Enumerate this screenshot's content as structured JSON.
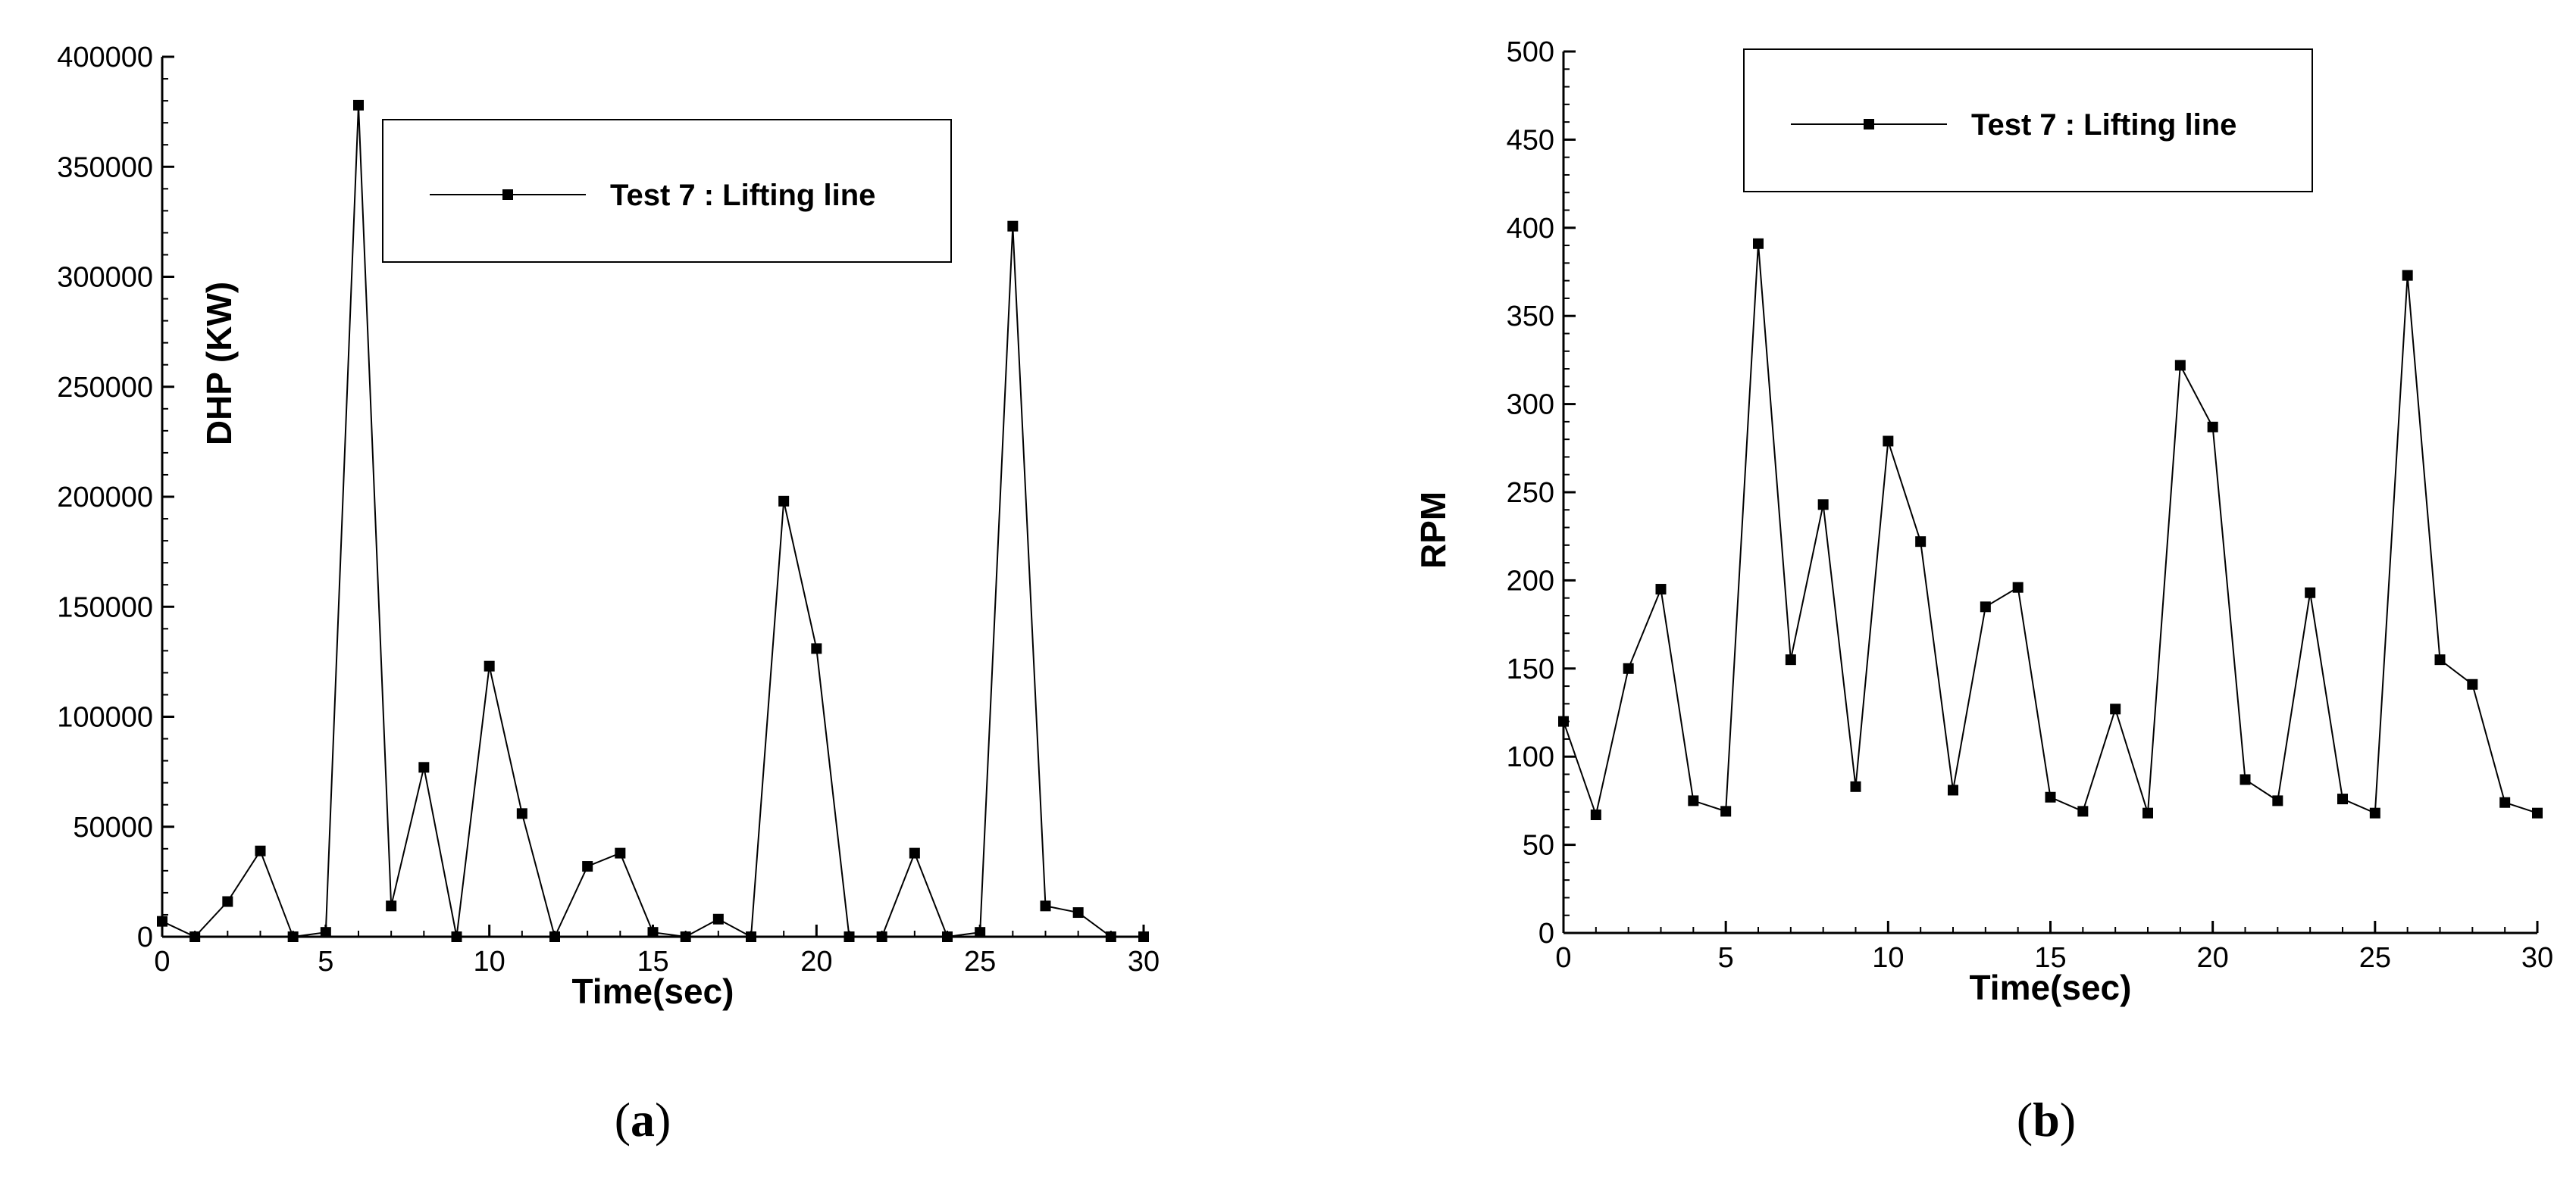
{
  "chart_data": [
    {
      "id": "a",
      "type": "line",
      "caption_letter": "a",
      "xlabel": "Time(sec)",
      "ylabel": "DHP (KW)",
      "xlim": [
        0,
        30
      ],
      "ylim": [
        0,
        400000
      ],
      "xticks": [
        "0",
        "5",
        "10",
        "15",
        "20",
        "25",
        "30"
      ],
      "yticks": [
        "0",
        "50000",
        "100000",
        "150000",
        "200000",
        "250000",
        "300000",
        "350000",
        "400000"
      ],
      "grid": false,
      "legend_position": "top-center",
      "series": [
        {
          "name": "Test 7 : Lifting line",
          "marker": "square",
          "color": "#000000",
          "x": [
            0,
            1,
            2,
            3,
            4,
            5,
            6,
            7,
            8,
            9,
            10,
            11,
            12,
            13,
            14,
            15,
            16,
            17,
            18,
            19,
            20,
            21,
            22,
            23,
            24,
            25,
            26,
            27,
            28,
            29,
            30
          ],
          "values": [
            7000,
            0,
            16000,
            39000,
            0,
            2000,
            378000,
            14000,
            77000,
            0,
            123000,
            56000,
            0,
            32000,
            38000,
            2000,
            0,
            8000,
            0,
            198000,
            131000,
            0,
            0,
            38000,
            0,
            2000,
            323000,
            14000,
            11000,
            0,
            0
          ]
        }
      ]
    },
    {
      "id": "b",
      "type": "line",
      "caption_letter": "b",
      "xlabel": "Time(sec)",
      "ylabel": "RPM",
      "xlim": [
        0,
        30
      ],
      "ylim": [
        0,
        500
      ],
      "xticks": [
        "0",
        "5",
        "10",
        "15",
        "20",
        "25",
        "30"
      ],
      "yticks": [
        "0",
        "50",
        "100",
        "150",
        "200",
        "250",
        "300",
        "350",
        "400",
        "450",
        "500"
      ],
      "grid": false,
      "legend_position": "top-center",
      "series": [
        {
          "name": "Test 7 : Lifting line",
          "marker": "square",
          "color": "#000000",
          "x": [
            0,
            1,
            2,
            3,
            4,
            5,
            6,
            7,
            8,
            9,
            10,
            11,
            12,
            13,
            14,
            15,
            16,
            17,
            18,
            19,
            20,
            21,
            22,
            23,
            24,
            25,
            26,
            27,
            28,
            29,
            30
          ],
          "values": [
            120,
            67,
            150,
            195,
            75,
            69,
            391,
            155,
            243,
            83,
            279,
            222,
            81,
            185,
            196,
            77,
            69,
            127,
            68,
            322,
            287,
            87,
            75,
            193,
            76,
            68,
            373,
            155,
            141,
            74,
            68
          ]
        }
      ]
    }
  ]
}
